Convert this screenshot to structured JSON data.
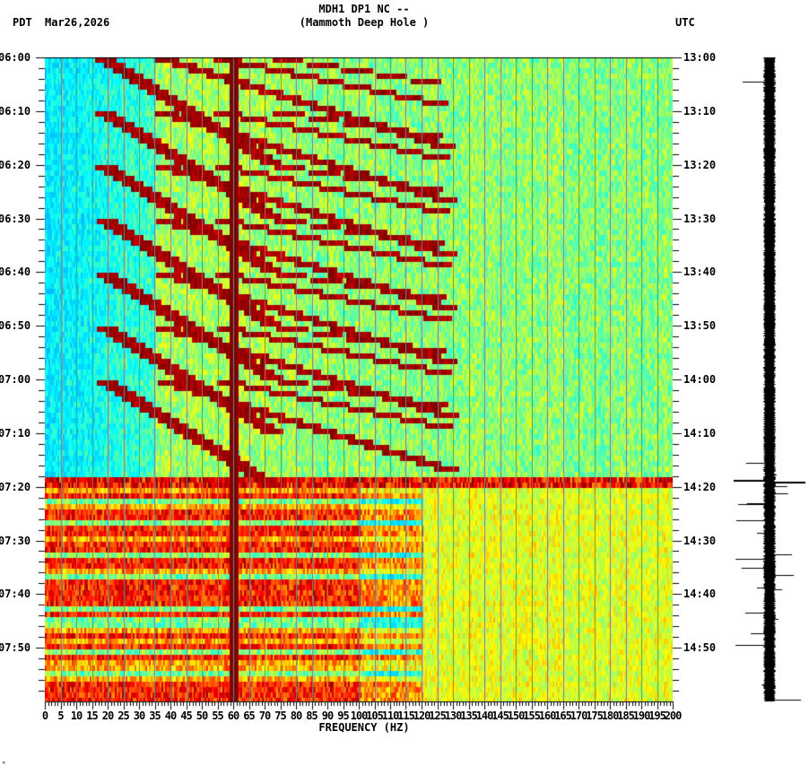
{
  "header": {
    "station_line": "MDH1 DP1 NC --",
    "location_line": "(Mammoth Deep Hole )",
    "left_timezone": "PDT",
    "date": "Mar26,2026",
    "right_timezone": "UTC"
  },
  "footer": {
    "mark": "ᴹ"
  },
  "colors": {
    "background": "#ffffff",
    "axis": "#000000",
    "gridline": "#808080",
    "colormap": [
      "#0a64f0",
      "#00b4ff",
      "#00ffff",
      "#80ff80",
      "#ffff00",
      "#ff8000",
      "#ff0000",
      "#800000"
    ]
  },
  "chart_data": {
    "type": "heatmap",
    "title": "MDH1 DP1 NC -- (Mammoth Deep Hole )",
    "xlabel": "FREQUENCY (HZ)",
    "ylabel_left": "PDT",
    "ylabel_right": "UTC",
    "xlim": [
      0,
      200
    ],
    "x_ticks": [
      "0",
      "5",
      "10",
      "15",
      "20",
      "25",
      "30",
      "35",
      "40",
      "45",
      "50",
      "55",
      "60",
      "65",
      "70",
      "75",
      "80",
      "85",
      "90",
      "95",
      "100",
      "105",
      "110",
      "115",
      "120",
      "125",
      "130",
      "135",
      "140",
      "145",
      "150",
      "155",
      "160",
      "165",
      "170",
      "175",
      "180",
      "185",
      "190",
      "195",
      "200"
    ],
    "y_range_minutes": [
      0,
      120
    ],
    "y_ticks_left": [
      "06:00",
      "06:10",
      "06:20",
      "06:30",
      "06:40",
      "06:50",
      "07:00",
      "07:10",
      "07:20",
      "07:30",
      "07:40",
      "07:50"
    ],
    "y_ticks_right": [
      "13:00",
      "13:10",
      "13:20",
      "13:30",
      "13:40",
      "13:50",
      "14:00",
      "14:10",
      "14:20",
      "14:30",
      "14:40",
      "14:50"
    ],
    "minor_tick_minutes": 2,
    "features": {
      "persistent_line_hz": 60,
      "chirp_period_min": 10,
      "chirp_start_minutes": [
        0,
        10,
        20,
        30,
        40,
        50,
        60
      ],
      "noise_onset_minute": 78,
      "broadband_event_minute": 79,
      "quiet_low_band_hz": [
        0,
        35
      ]
    },
    "seismogram": {
      "position": "right",
      "event_minute": 79,
      "early_spike_minute": 4.5
    }
  }
}
